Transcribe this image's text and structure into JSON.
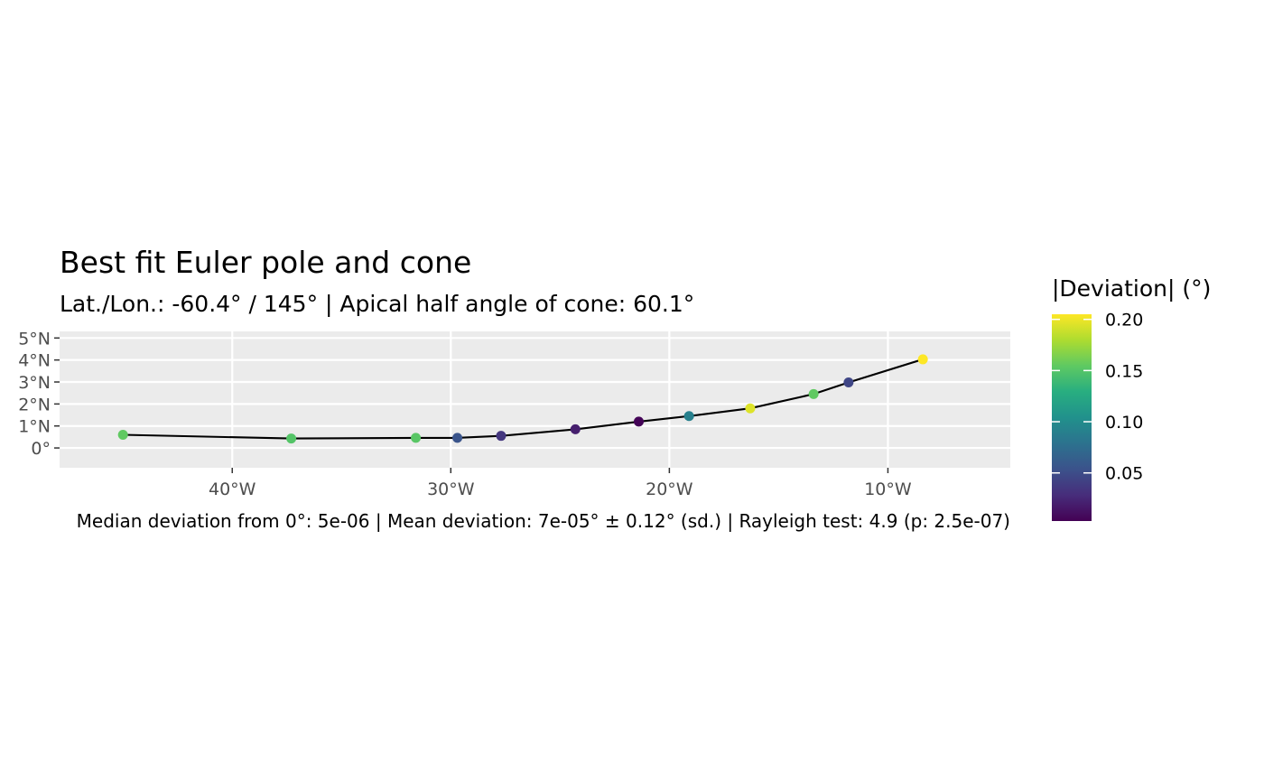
{
  "chart_data": {
    "type": "line",
    "title": "Best fit Euler pole and cone",
    "subtitle": "Lat./Lon.: -60.4° / 145° | Apical half angle of cone: 60.1°",
    "caption": "Median deviation from 0°: 5e-06 | Mean deviation: 7e-05° ± 0.12° (sd.) | Rayleigh test: 4.9 (p: 2.5e-07)",
    "xlabel": "",
    "ylabel": "",
    "x_axis": {
      "ticks": [
        -40,
        -30,
        -20,
        -10
      ],
      "tick_labels": [
        "40°W",
        "30°W",
        "20°W",
        "10°W"
      ],
      "range": [
        -47.9,
        -4.4
      ]
    },
    "y_axis": {
      "ticks": [
        0,
        1,
        2,
        3,
        4,
        5
      ],
      "tick_labels": [
        "0°",
        "1°N",
        "2°N",
        "3°N",
        "4°N",
        "5°N"
      ],
      "range": [
        -0.9,
        5.3
      ]
    },
    "grid": true,
    "legend": {
      "title": "|Deviation| (°)",
      "position": "right",
      "type": "colorbar",
      "ticks": [
        0.05,
        0.1,
        0.15,
        0.2
      ],
      "tick_labels": [
        "0.05",
        "0.10",
        "0.15",
        "0.20"
      ],
      "range": [
        0.003,
        0.205
      ]
    },
    "points": [
      {
        "lon": -45.0,
        "lat": 0.6,
        "deviation": 0.155
      },
      {
        "lon": -37.3,
        "lat": 0.43,
        "deviation": 0.15
      },
      {
        "lon": -31.6,
        "lat": 0.46,
        "deviation": 0.152
      },
      {
        "lon": -29.7,
        "lat": 0.46,
        "deviation": 0.055
      },
      {
        "lon": -27.7,
        "lat": 0.55,
        "deviation": 0.035
      },
      {
        "lon": -24.3,
        "lat": 0.85,
        "deviation": 0.02
      },
      {
        "lon": -21.4,
        "lat": 1.2,
        "deviation": 0.005
      },
      {
        "lon": -19.1,
        "lat": 1.45,
        "deviation": 0.09
      },
      {
        "lon": -16.3,
        "lat": 1.8,
        "deviation": 0.195
      },
      {
        "lon": -13.4,
        "lat": 2.45,
        "deviation": 0.155
      },
      {
        "lon": -11.8,
        "lat": 2.98,
        "deviation": 0.045
      },
      {
        "lon": -8.4,
        "lat": 4.03,
        "deviation": 0.205
      }
    ],
    "colors": {
      "panel_background": "#ebebeb",
      "grid": "#ffffff",
      "line": "#000000",
      "colormap": "viridis"
    }
  }
}
